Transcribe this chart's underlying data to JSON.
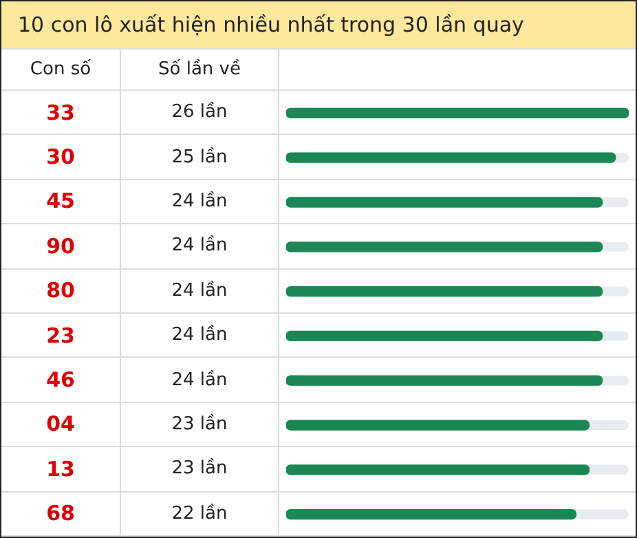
{
  "chart_data": {
    "type": "bar",
    "orientation": "horizontal",
    "title": "10 con lô xuất hiện nhiều nhất trong 30 lần quay",
    "ylabel": "Con số",
    "xlabel": "Số lần về",
    "categories": [
      "33",
      "30",
      "45",
      "90",
      "80",
      "23",
      "46",
      "04",
      "13",
      "68"
    ],
    "values": [
      26,
      25,
      24,
      24,
      24,
      24,
      24,
      23,
      23,
      22
    ],
    "value_labels": [
      "26 lần",
      "25 lần",
      "24 lần",
      "24 lần",
      "24 lần",
      "24 lần",
      "24 lần",
      "23 lần",
      "23 lần",
      "22 lần"
    ],
    "color": "#1a8754",
    "tick_labels": "y"
  }
}
